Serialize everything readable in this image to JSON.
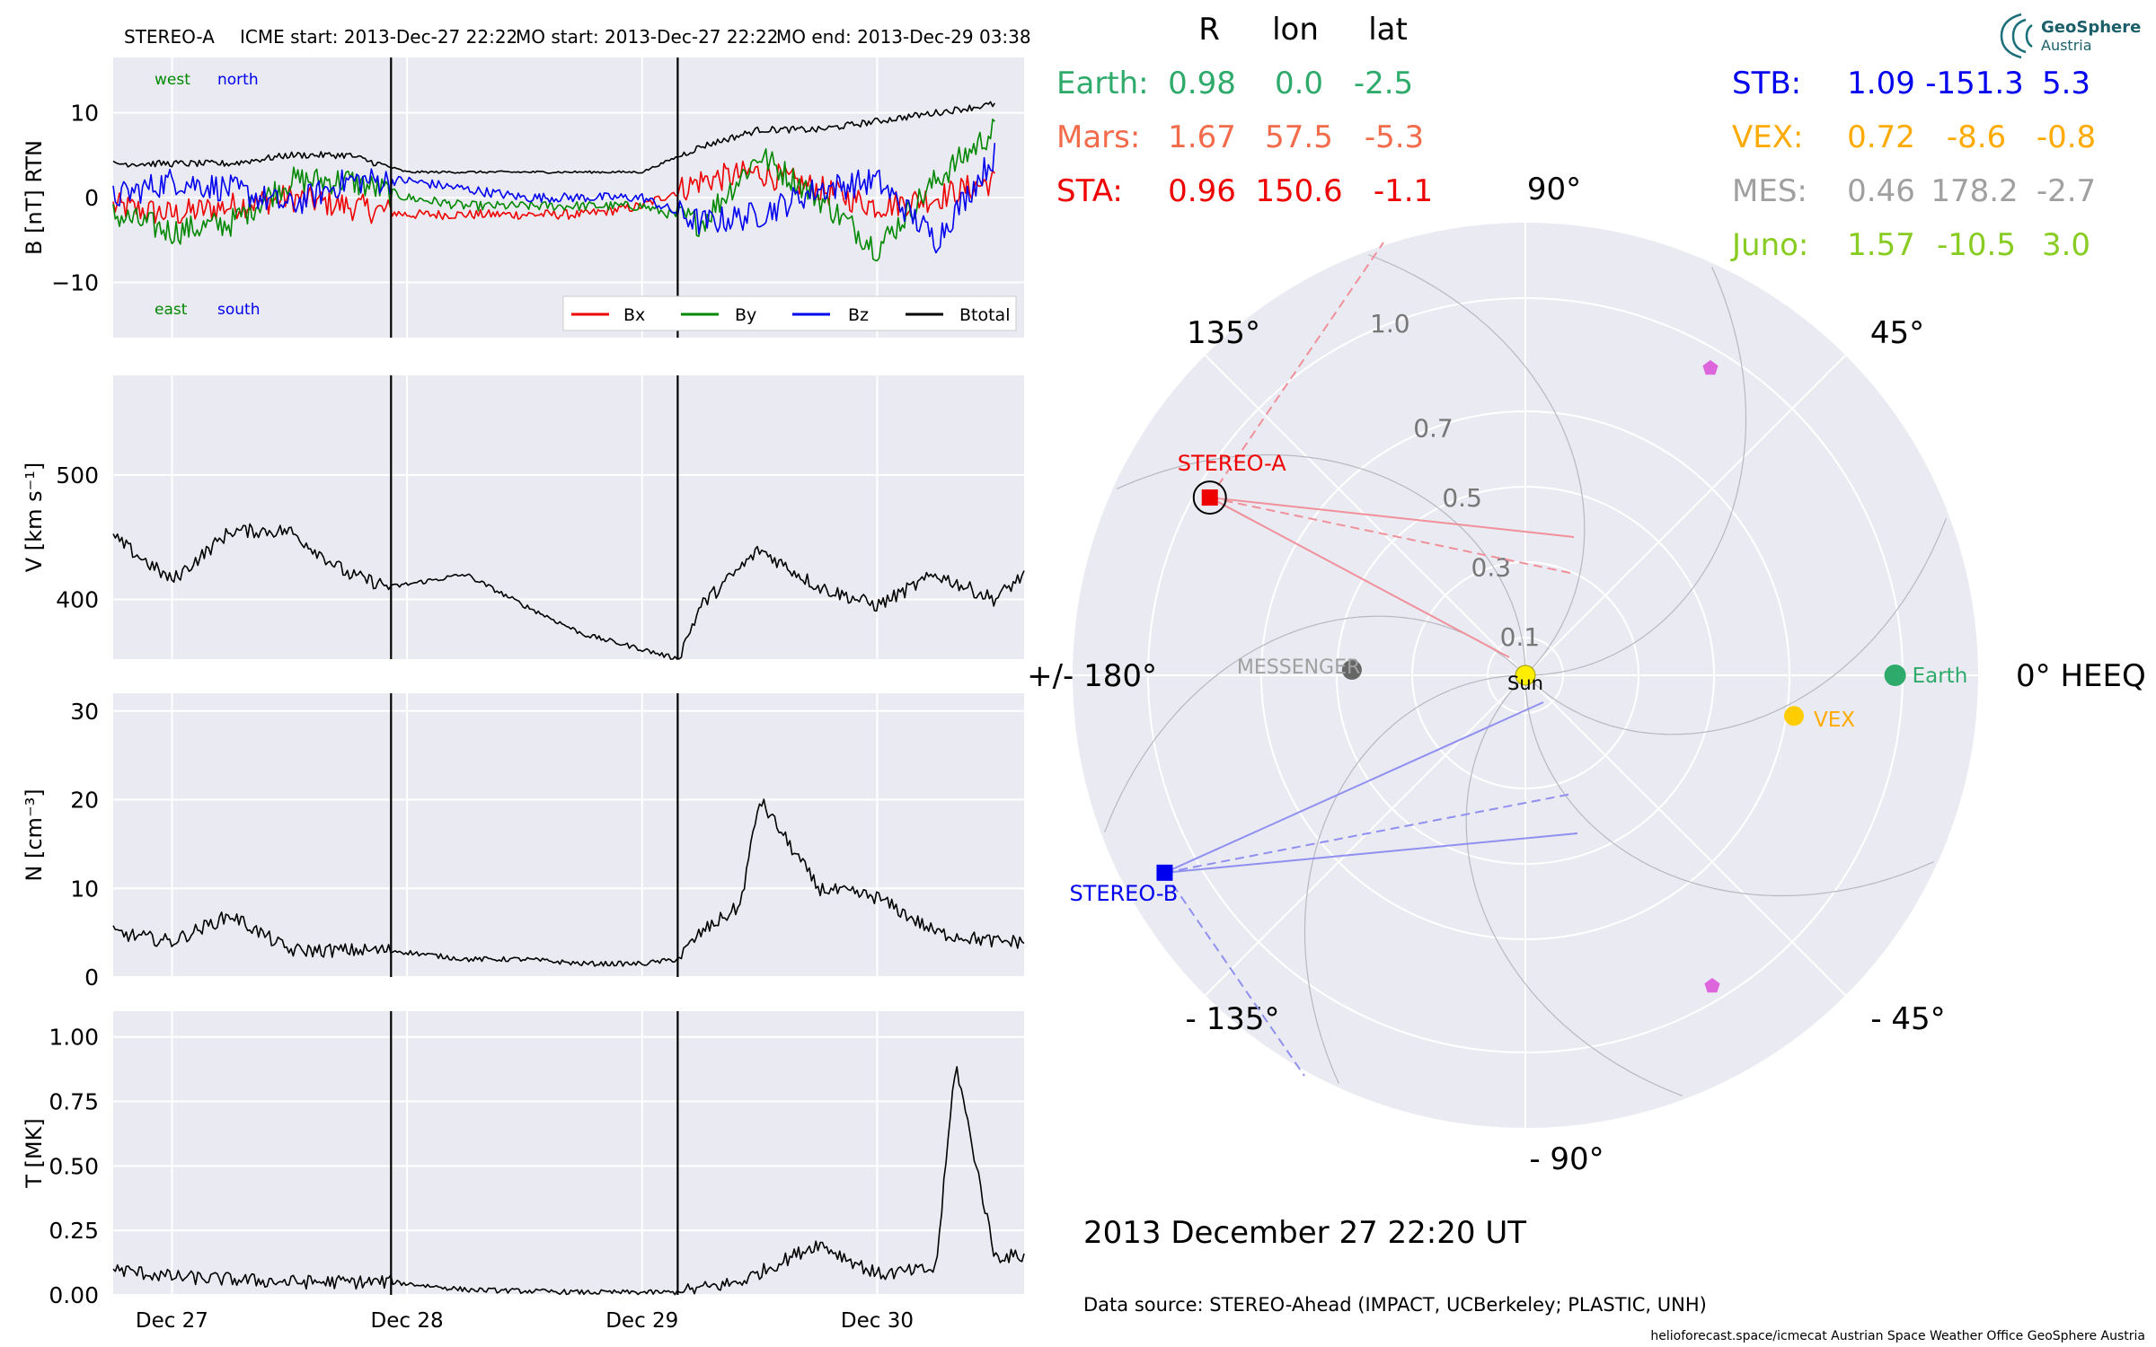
{
  "header": {
    "spacecraft": "STEREO-A",
    "icme_start": "ICME start: 2013-Dec-27 22:22",
    "mo_start": "MO start: 2013-Dec-27 22:22",
    "mo_end": "MO end: 2013-Dec-29 03:38"
  },
  "colors": {
    "panel_bg": "#eaeaf2",
    "bx": "#ee0000",
    "by": "#008800",
    "bz": "#0000ee",
    "btotal": "#000000",
    "earth": "#2eaa6a",
    "mars": "#f26b4a",
    "sta": "#ee0000",
    "stb": "#0000ee",
    "vex": "#ffaa00",
    "mes": "#a0a0a0",
    "juno": "#88cc22",
    "sun": "#ffee00",
    "venus_dot": "#ffcc00",
    "messenger_dot": "#666666",
    "juno_marker": "#dd66dd"
  },
  "chart_data": [
    {
      "type": "line",
      "panel": "magnetic-field",
      "ylabel": "B [nT] RTN",
      "ylim": [
        -16.5,
        16.5
      ],
      "yticks": [
        "10",
        "0",
        "−10"
      ],
      "yticks_values": [
        10,
        0,
        -10
      ],
      "annotations": {
        "west": "west",
        "north": "north",
        "east": "east",
        "south": "south"
      },
      "legend": {
        "placement": "bottom-right",
        "entries": [
          "Bx",
          "By",
          "Bz",
          "Btotal"
        ]
      },
      "x": [
        "Dec 26 18:00",
        "Dec 27 00:00",
        "Dec 27 06:00",
        "Dec 27 12:00",
        "Dec 27 18:00",
        "Dec 28 00:00",
        "Dec 28 06:00",
        "Dec 28 12:00",
        "Dec 28 18:00",
        "Dec 29 00:00",
        "Dec 29 06:00",
        "Dec 29 12:00",
        "Dec 29 18:00",
        "Dec 30 00:00",
        "Dec 30 06:00",
        "Dec 30 12:00"
      ],
      "series": [
        {
          "name": "Bx",
          "values": [
            -1,
            -2,
            -1,
            0,
            -1,
            -2,
            -2,
            -2,
            -2,
            -1,
            2,
            3,
            1,
            -1,
            0,
            2
          ]
        },
        {
          "name": "By",
          "values": [
            -2,
            -4,
            -3,
            2,
            2,
            0,
            -1,
            -1,
            -1,
            -1,
            -3,
            5,
            0,
            -6,
            2,
            8
          ]
        },
        {
          "name": "Bz",
          "values": [
            0,
            2,
            1,
            -1,
            2,
            2,
            1,
            0,
            0,
            0,
            -3,
            -2,
            1,
            2,
            -5,
            5
          ]
        },
        {
          "name": "Btotal",
          "values": [
            4,
            4,
            4,
            5,
            5,
            3,
            3,
            3,
            3,
            3,
            6,
            8,
            8,
            9,
            10,
            11
          ]
        }
      ]
    },
    {
      "type": "line",
      "panel": "speed",
      "ylabel": "V [km s⁻¹]",
      "ylim": [
        352,
        580
      ],
      "yticks": [
        "500",
        "400"
      ],
      "yticks_values": [
        500,
        400
      ],
      "x": [
        "Dec 26 18:00",
        "Dec 27 00:00",
        "Dec 27 06:00",
        "Dec 27 12:00",
        "Dec 27 18:00",
        "Dec 27 22:22",
        "Dec 28 06:00",
        "Dec 28 12:00",
        "Dec 28 18:00",
        "Dec 29 00:00",
        "Dec 29 03:38",
        "Dec 29 06:00",
        "Dec 29 12:00",
        "Dec 29 18:00",
        "Dec 30 00:00",
        "Dec 30 06:00",
        "Dec 30 12:00",
        "Dec 30 15:00"
      ],
      "series": [
        {
          "name": "V",
          "values": [
            450,
            415,
            455,
            455,
            420,
            410,
            420,
            395,
            372,
            360,
            352,
            395,
            440,
            410,
            395,
            420,
            400,
            420
          ]
        }
      ]
    },
    {
      "type": "line",
      "panel": "density",
      "ylabel": "N [cm⁻³]",
      "ylim": [
        0,
        32
      ],
      "yticks": [
        "30",
        "20",
        "10",
        "0"
      ],
      "yticks_values": [
        30,
        20,
        10,
        0
      ],
      "x": [
        "Dec 26 18:00",
        "Dec 27 00:00",
        "Dec 27 06:00",
        "Dec 27 12:00",
        "Dec 27 18:00",
        "Dec 27 22:22",
        "Dec 28 06:00",
        "Dec 28 12:00",
        "Dec 28 18:00",
        "Dec 29 00:00",
        "Dec 29 03:38",
        "Dec 29 06:00",
        "Dec 29 10:00",
        "Dec 29 12:00",
        "Dec 29 18:00",
        "Dec 30 00:00",
        "Dec 30 06:00",
        "Dec 30 12:00",
        "Dec 30 15:00"
      ],
      "series": [
        {
          "name": "N",
          "values": [
            5,
            4,
            7,
            3,
            3,
            3,
            2,
            2,
            1.5,
            1.5,
            2,
            5,
            8,
            20,
            10,
            9,
            5,
            4,
            4
          ]
        }
      ]
    },
    {
      "type": "line",
      "panel": "temperature",
      "ylabel": "T [MK]",
      "ylim": [
        0,
        1.1
      ],
      "yticks": [
        "1.00",
        "0.75",
        "0.50",
        "0.25",
        "0.00"
      ],
      "yticks_values": [
        1.0,
        0.75,
        0.5,
        0.25,
        0.0
      ],
      "xticks": [
        "Dec 27",
        "Dec 28",
        "Dec 29",
        "Dec 30"
      ],
      "x": [
        "Dec 26 18:00",
        "Dec 27 00:00",
        "Dec 27 12:00",
        "Dec 27 22:22",
        "Dec 28 06:00",
        "Dec 28 18:00",
        "Dec 29 03:38",
        "Dec 29 10:00",
        "Dec 29 18:00",
        "Dec 30 00:00",
        "Dec 30 06:00",
        "Dec 30 08:00",
        "Dec 30 12:00",
        "Dec 30 15:00"
      ],
      "series": [
        {
          "name": "T",
          "values": [
            0.1,
            0.07,
            0.05,
            0.05,
            0.02,
            0.01,
            0.01,
            0.05,
            0.2,
            0.08,
            0.1,
            0.9,
            0.15,
            0.15
          ]
        }
      ]
    }
  ],
  "polar": {
    "type": "scatter",
    "coordinate_labels": {
      "deg90": "90°",
      "deg45": "45°",
      "deg135": "135°",
      "deg0": "0° HEEQ",
      "deg180": "+/- 180°",
      "deg_minus45": "- 45°",
      "deg_minus135": "- 135°",
      "deg_minus90": "- 90°"
    },
    "radial_labels": [
      "0.1",
      "0.3",
      "0.5",
      "0.7",
      "1.0"
    ],
    "rlim": [
      0,
      1.2
    ],
    "objects": [
      {
        "name": "Sun",
        "label": "Sun",
        "r": 0.0,
        "lon": 0
      },
      {
        "name": "Earth",
        "label": "Earth",
        "r": 0.98,
        "lon": 0.0
      },
      {
        "name": "VEX",
        "label": "VEX",
        "r": 0.72,
        "lon": -8.6
      },
      {
        "name": "MESSENGER",
        "label": "MESSENGER",
        "r": 0.46,
        "lon": 178.2
      },
      {
        "name": "STEREO-A",
        "label": "STEREO-A",
        "r": 0.96,
        "lon": 150.6
      },
      {
        "name": "STEREO-B",
        "label": "STEREO-B",
        "r": 1.09,
        "lon": -151.3
      },
      {
        "name": "Juno-1",
        "label": "",
        "r": 1.2,
        "lon": 57
      },
      {
        "name": "Juno-2",
        "label": "",
        "r": 1.2,
        "lon": -57
      }
    ]
  },
  "positions_table": {
    "headers": [
      "R",
      "lon",
      "lat"
    ],
    "left": [
      {
        "name": "Earth:",
        "R": "0.98",
        "lon": "0.0",
        "lat": "-2.5"
      },
      {
        "name": "Mars:",
        "R": "1.67",
        "lon": "57.5",
        "lat": "-5.3"
      },
      {
        "name": "STA:",
        "R": "0.96",
        "lon": "150.6",
        "lat": "-1.1"
      }
    ],
    "right": [
      {
        "name": "STB:",
        "R": "1.09",
        "lon": "-151.3",
        "lat": "5.3"
      },
      {
        "name": "VEX:",
        "R": "0.72",
        "lon": "-8.6",
        "lat": "-0.8"
      },
      {
        "name": "MES:",
        "R": "0.46",
        "lon": "178.2",
        "lat": "-2.7"
      },
      {
        "name": "Juno:",
        "R": "1.57",
        "lon": "-10.5",
        "lat": "3.0"
      }
    ]
  },
  "logo": {
    "line1": "GeoSphere",
    "line2": "Austria"
  },
  "timestamp": "2013 December 27  22:20 UT",
  "data_source": "Data source: STEREO-Ahead (IMPACT, UCBerkeley; PLASTIC, UNH)",
  "footer": "helioforecast.space/icmecat   Austrian Space Weather Office   GeoSphere Austria"
}
